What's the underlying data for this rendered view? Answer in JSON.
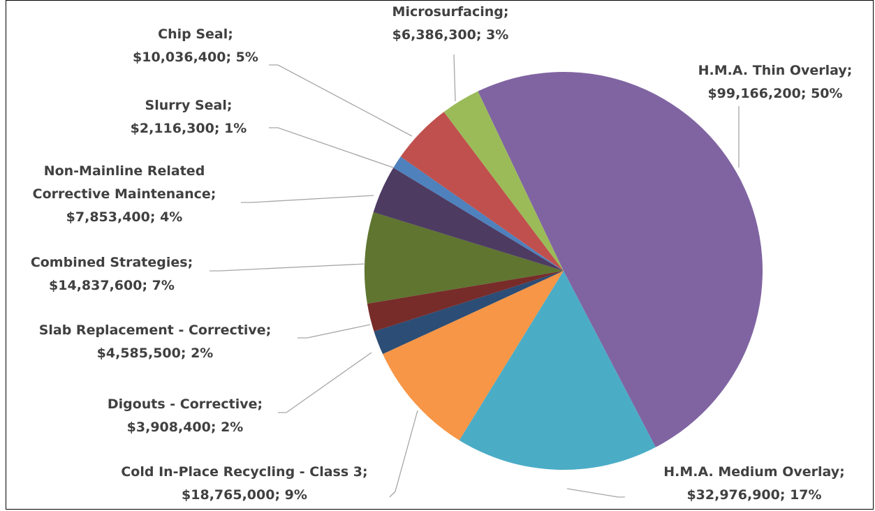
{
  "chart_data": {
    "type": "pie",
    "categories": [
      "H.M.A. Thin Overlay;",
      "H.M.A. Medium Overlay;",
      "Cold In-Place Recycling - Class 3;",
      "Digouts - Corrective;",
      "Slab Replacement - Corrective;",
      "Combined Strategies;",
      "Non-Mainline Related Corrective Maintenance;",
      "Slurry Seal;",
      "Chip Seal;",
      "Microsurfacing;"
    ],
    "values": [
      99166200,
      32976900,
      18765000,
      3908400,
      4585500,
      14837600,
      7853400,
      2116300,
      10036400,
      6386300
    ],
    "value_labels": [
      "$99,166,200; 50%",
      "$32,976,900; 17%",
      "$18,765,000; 9%",
      "$3,908,400; 2%",
      "$4,585,500; 2%",
      "$14,837,600; 7%",
      "$7,853,400; 4%",
      "$2,116,300; 1%",
      "$10,036,400; 5%",
      "$6,386,300; 3%"
    ],
    "colors": [
      "#8064a2",
      "#4bacc6",
      "#f79646",
      "#2c4d75",
      "#772c2a",
      "#5f7530",
      "#4d3b62",
      "#4f81bd",
      "#c0504d",
      "#9bbb59"
    ]
  }
}
